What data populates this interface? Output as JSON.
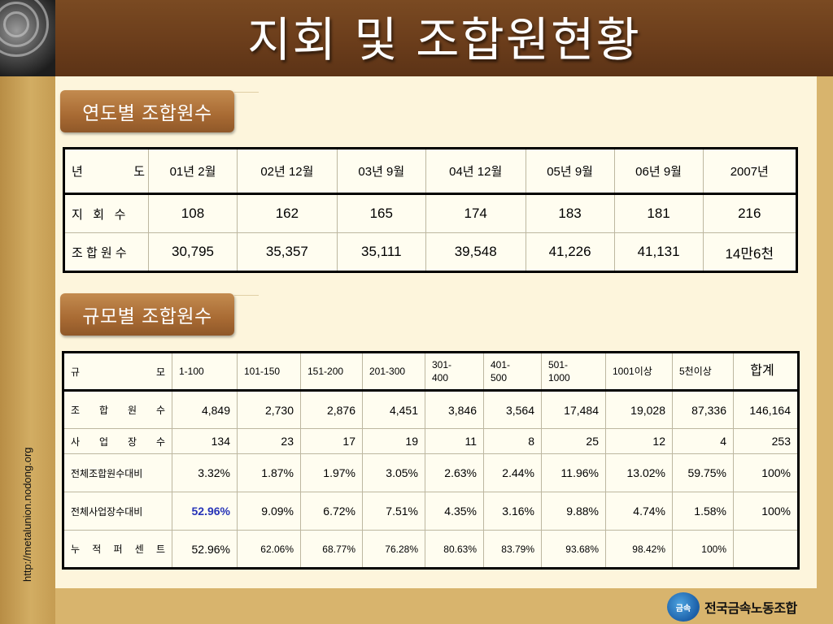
{
  "title": "지회 및 조합원현황",
  "side_url": "http://metalunion.nodong.org",
  "section1": {
    "tab_label": "연도별 조합원수"
  },
  "section2": {
    "tab_label": "규모별 조합원수"
  },
  "table1": {
    "header_label": "년          도",
    "columns": [
      "01년 2월",
      "02년 12월",
      "03년 9월",
      "04년 12월",
      "05년 9월",
      "06년 9월",
      "2007년"
    ],
    "rows": [
      {
        "label": "지   회   수",
        "values": [
          "108",
          "162",
          "165",
          "174",
          "183",
          "181",
          "216"
        ]
      },
      {
        "label": "조 합 원 수",
        "values": [
          "30,795",
          "35,357",
          "35,111",
          "39,548",
          "41,226",
          "41,131",
          "14만6천"
        ]
      }
    ]
  },
  "table2": {
    "header_label": [
      "규",
      "모"
    ],
    "columns": [
      "1-100",
      "101-150",
      "151-200",
      "201-300",
      "301-\n400",
      "401-\n500",
      "501-\n1000",
      "1001이상",
      "5천이상",
      "합계"
    ],
    "rows": [
      {
        "label": [
          "조",
          "합",
          "원",
          "수"
        ],
        "values": [
          "4,849",
          "2,730",
          "2,876",
          "4,451",
          "3,846",
          "3,564",
          "17,484",
          "19,028",
          "87,336",
          "146,164"
        ]
      },
      {
        "label": [
          "사",
          "업",
          "장",
          "수"
        ],
        "values": [
          "134",
          "23",
          "17",
          "19",
          "11",
          "8",
          "25",
          "12",
          "4",
          "253"
        ]
      },
      {
        "label": [
          "전체조합원수대비"
        ],
        "values": [
          "3.32%",
          "1.87%",
          "1.97%",
          "3.05%",
          "2.63%",
          "2.44%",
          "11.96%",
          "13.02%",
          "59.75%",
          "100%"
        ]
      },
      {
        "label": [
          "전체사업장수대비"
        ],
        "values": [
          "52.96%",
          "9.09%",
          "6.72%",
          "7.51%",
          "4.35%",
          "3.16%",
          "9.88%",
          "4.74%",
          "1.58%",
          "100%"
        ]
      },
      {
        "label": [
          "누",
          "적",
          "퍼",
          "센",
          "트"
        ],
        "values": [
          "52.96%",
          "62.06%",
          "68.77%",
          "76.28%",
          "80.63%",
          "83.79%",
          "93.68%",
          "98.42%",
          "100%",
          ""
        ]
      }
    ]
  },
  "logo": {
    "mark": "금속",
    "text": "전국금속노동조합"
  },
  "colors": {
    "header": "#6b3d1b",
    "panel": "#fdf5dc",
    "tab": "#a86a33",
    "highlight": "#2633b8"
  }
}
